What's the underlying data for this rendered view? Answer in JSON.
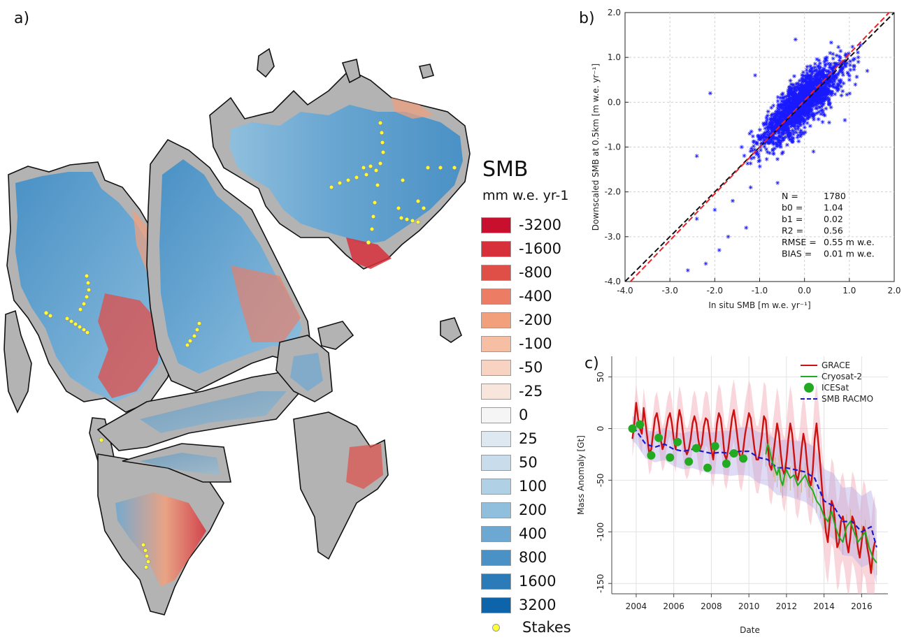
{
  "panels": {
    "a": "a)",
    "b": "b)",
    "c": "c)"
  },
  "legend": {
    "title": "SMB",
    "unit": "mm w.e. yr-1",
    "items": [
      {
        "label": "-3200",
        "color": "#c8102e"
      },
      {
        "label": "-1600",
        "color": "#d7303b"
      },
      {
        "label": "-800",
        "color": "#e04e48"
      },
      {
        "label": "-400",
        "color": "#ec7c64"
      },
      {
        "label": "-200",
        "color": "#f2a07c"
      },
      {
        "label": "-100",
        "color": "#f6bea2"
      },
      {
        "label": "-50",
        "color": "#f8d3c2"
      },
      {
        "label": "-25",
        "color": "#f8e5dc"
      },
      {
        "label": "0",
        "color": "#f5f5f5"
      },
      {
        "label": "25",
        "color": "#dde8f1"
      },
      {
        "label": "50",
        "color": "#c9dcec"
      },
      {
        "label": "100",
        "color": "#afd0e5"
      },
      {
        "label": "200",
        "color": "#90bfdd"
      },
      {
        "label": "400",
        "color": "#6ca8d2"
      },
      {
        "label": "800",
        "color": "#4a91c5"
      },
      {
        "label": "1600",
        "color": "#2b7bb9"
      },
      {
        "label": "3200",
        "color": "#0d64aa"
      }
    ],
    "stakes_label": "Stakes"
  },
  "chart_data": [
    {
      "type": "scatter",
      "panel": "b)",
      "xlabel": "In situ SMB [m w.e. yr⁻¹]",
      "ylabel": "Downscaled SMB at 0.5km [m w.e. yr⁻¹]",
      "xlim": [
        -4.0,
        2.0
      ],
      "ylim": [
        -4.0,
        2.0
      ],
      "xticks": [
        "-4.0",
        "-3.0",
        "-2.0",
        "-1.0",
        "0.0",
        "1.0",
        "2.0"
      ],
      "yticks": [
        "-4.0",
        "-3.0",
        "-2.0",
        "-1.0",
        "0.0",
        "1.0",
        "2.0"
      ],
      "grid": true,
      "marker_color": "#1a1aff",
      "n_points": 1780,
      "points_sample": [
        [
          -2.6,
          -3.75
        ],
        [
          -2.2,
          -3.6
        ],
        [
          -1.9,
          -3.3
        ],
        [
          -1.7,
          -3.0
        ],
        [
          -2.4,
          -2.6
        ],
        [
          -2.0,
          -2.4
        ],
        [
          -1.6,
          -2.2
        ],
        [
          -1.2,
          -1.9
        ],
        [
          -1.4,
          -1.0
        ],
        [
          -1.0,
          -1.3
        ],
        [
          -0.8,
          -0.9
        ],
        [
          -0.5,
          -0.7
        ],
        [
          -0.3,
          -0.2
        ],
        [
          0.0,
          0.1
        ],
        [
          0.2,
          -0.3
        ],
        [
          0.4,
          0.3
        ],
        [
          0.6,
          0.2
        ],
        [
          0.8,
          0.7
        ],
        [
          1.0,
          0.5
        ],
        [
          1.2,
          0.9
        ],
        [
          1.4,
          0.7
        ],
        [
          -0.2,
          1.4
        ],
        [
          0.5,
          1.0
        ],
        [
          -1.1,
          0.6
        ],
        [
          -2.1,
          0.2
        ],
        [
          -2.4,
          -1.2
        ],
        [
          0.9,
          -0.4
        ],
        [
          0.2,
          -1.1
        ],
        [
          -0.6,
          -1.8
        ],
        [
          -1.3,
          -2.8
        ]
      ],
      "stats": [
        {
          "label": "N  =",
          "value": "1780"
        },
        {
          "label": "b0 =",
          "value": "1.04"
        },
        {
          "label": "b1 =",
          "value": "0.02"
        },
        {
          "label": "R2 =",
          "value": "0.56"
        },
        {
          "label": "RMSE =",
          "value": "0.55 m w.e."
        },
        {
          "label": "BIAS =",
          "value": "0.01 m w.e."
        }
      ],
      "lines": [
        {
          "name": "1:1",
          "style": "dashed",
          "color": "#111111",
          "x": [
            -4.0,
            2.0
          ],
          "y": [
            -4.0,
            2.0
          ]
        },
        {
          "name": "fit",
          "style": "dashed",
          "color": "#e8242b",
          "x": [
            -3.88,
            2.0
          ],
          "y": [
            -4.0,
            2.12
          ]
        }
      ]
    },
    {
      "type": "line",
      "panel": "c)",
      "xlabel": "Date",
      "ylabel": "Mass Anomaly [Gt]",
      "xlim": [
        2002.7,
        2017.4
      ],
      "ylim": [
        -160,
        70
      ],
      "xticks": [
        "2004",
        "2006",
        "2008",
        "2010",
        "2012",
        "2014",
        "2016"
      ],
      "yticks": [
        "50",
        "0",
        "-50",
        "-100",
        "-150"
      ],
      "grid": true,
      "legend_position": "top-right",
      "series": [
        {
          "name": "GRACE",
          "color": "#cc1111",
          "x": [
            2003.8,
            2003.9,
            2004.0,
            2004.1,
            2004.2,
            2004.3,
            2004.4,
            2004.5,
            2004.6,
            2004.7,
            2004.8,
            2004.9,
            2005.0,
            2005.1,
            2005.2,
            2005.3,
            2005.4,
            2005.5,
            2005.6,
            2005.7,
            2005.8,
            2005.9,
            2006.0,
            2006.1,
            2006.2,
            2006.3,
            2006.4,
            2006.5,
            2006.6,
            2006.7,
            2006.8,
            2006.9,
            2007.0,
            2007.1,
            2007.2,
            2007.3,
            2007.4,
            2007.5,
            2007.6,
            2007.7,
            2007.8,
            2007.9,
            2008.0,
            2008.1,
            2008.2,
            2008.3,
            2008.4,
            2008.5,
            2008.6,
            2008.7,
            2008.8,
            2008.9,
            2009.0,
            2009.1,
            2009.2,
            2009.3,
            2009.4,
            2009.5,
            2009.6,
            2009.7,
            2009.8,
            2009.9,
            2010.0,
            2010.1,
            2010.2,
            2010.3,
            2010.4,
            2010.5,
            2010.6,
            2010.7,
            2010.8,
            2010.9,
            2011.0,
            2011.1,
            2011.2,
            2011.3,
            2011.4,
            2011.5,
            2011.6,
            2011.7,
            2011.8,
            2011.9,
            2012.0,
            2012.1,
            2012.2,
            2012.3,
            2012.4,
            2012.5,
            2012.6,
            2012.7,
            2012.8,
            2012.9,
            2013.0,
            2013.1,
            2013.2,
            2013.3,
            2013.4,
            2013.5,
            2013.6,
            2013.7,
            2013.8,
            2013.9,
            2014.0,
            2014.1,
            2014.2,
            2014.3,
            2014.4,
            2014.5,
            2014.6,
            2014.7,
            2014.8,
            2014.9,
            2015.0,
            2015.1,
            2015.2,
            2015.3,
            2015.4,
            2015.5,
            2015.6,
            2015.7,
            2015.8,
            2015.9,
            2016.0,
            2016.1,
            2016.2,
            2016.3,
            2016.4,
            2016.5,
            2016.6,
            2016.7
          ],
          "values": [
            -10,
            5,
            25,
            10,
            0,
            -5,
            20,
            5,
            -10,
            -25,
            -20,
            -5,
            10,
            15,
            5,
            -10,
            -20,
            -15,
            0,
            10,
            15,
            5,
            -10,
            -20,
            5,
            18,
            10,
            -5,
            -20,
            -25,
            -20,
            -10,
            5,
            12,
            5,
            -10,
            -20,
            -15,
            2,
            10,
            8,
            -5,
            -20,
            -30,
            -15,
            5,
            15,
            10,
            -5,
            -25,
            -30,
            -20,
            -5,
            10,
            18,
            5,
            -10,
            -25,
            -30,
            -20,
            -5,
            5,
            15,
            10,
            -5,
            -20,
            -30,
            -30,
            -20,
            -5,
            12,
            8,
            -15,
            -35,
            -40,
            -25,
            -10,
            5,
            -5,
            -25,
            -40,
            -45,
            -30,
            -10,
            5,
            -5,
            -25,
            -45,
            -50,
            -40,
            -20,
            -5,
            -15,
            -35,
            -50,
            -55,
            -40,
            -10,
            5,
            -15,
            -35,
            -60,
            -80,
            -100,
            -110,
            -90,
            -70,
            -75,
            -95,
            -115,
            -110,
            -90,
            -85,
            -95,
            -110,
            -120,
            -105,
            -85,
            -90,
            -100,
            -115,
            -125,
            -110,
            -95,
            -100,
            -115,
            -125,
            -140,
            -120,
            -110
          ]
        },
        {
          "name": "Cryosat-2",
          "color": "#22aa22",
          "x": [
            2010.9,
            2011.0,
            2011.1,
            2011.2,
            2011.3,
            2011.4,
            2011.5,
            2011.6,
            2011.7,
            2011.8,
            2011.9,
            2012.0,
            2012.2,
            2012.4,
            2012.6,
            2012.8,
            2013.0,
            2013.2,
            2013.4,
            2013.6,
            2013.8,
            2014.0,
            2014.2,
            2014.4,
            2014.6,
            2014.8,
            2015.0,
            2015.2,
            2015.4,
            2015.6,
            2015.8,
            2016.0,
            2016.2,
            2016.4,
            2016.6,
            2016.8
          ],
          "values": [
            -25,
            -15,
            -20,
            -30,
            -35,
            -40,
            -45,
            -38,
            -50,
            -55,
            -45,
            -40,
            -48,
            -45,
            -55,
            -50,
            -45,
            -55,
            -60,
            -70,
            -75,
            -85,
            -90,
            -80,
            -95,
            -105,
            -110,
            -95,
            -90,
            -100,
            -110,
            -105,
            -100,
            -115,
            -125,
            -130
          ]
        },
        {
          "name": "ICESat",
          "color": "#22aa22",
          "marker": "circle",
          "x": [
            2003.8,
            2004.2,
            2004.8,
            2005.2,
            2005.8,
            2006.2,
            2006.8,
            2007.2,
            2007.8,
            2008.2,
            2008.8,
            2009.2,
            2009.7
          ],
          "values": [
            0,
            4,
            -26,
            -9,
            -28,
            -13,
            -32,
            -19,
            -38,
            -17,
            -34,
            -24,
            -29
          ]
        },
        {
          "name": "SMB RACMO",
          "color": "#1a1acc",
          "style": "dashed",
          "x": [
            2003.8,
            2004.0,
            2004.5,
            2005.0,
            2005.5,
            2006.0,
            2006.5,
            2007.0,
            2007.5,
            2008.0,
            2008.5,
            2009.0,
            2009.5,
            2010.0,
            2010.5,
            2011.0,
            2011.5,
            2012.0,
            2012.5,
            2013.0,
            2013.5,
            2014.0,
            2014.5,
            2015.0,
            2015.5,
            2016.0,
            2016.5,
            2016.8
          ],
          "values": [
            0,
            -2,
            -15,
            -18,
            -15,
            -20,
            -22,
            -20,
            -22,
            -24,
            -23,
            -24,
            -22,
            -22,
            -28,
            -30,
            -38,
            -38,
            -40,
            -42,
            -48,
            -70,
            -75,
            -90,
            -90,
            -100,
            -95,
            -115
          ]
        }
      ]
    }
  ]
}
